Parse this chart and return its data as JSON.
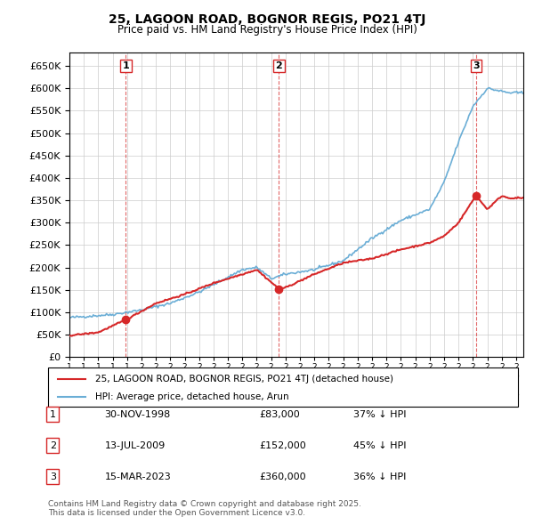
{
  "title": "25, LAGOON ROAD, BOGNOR REGIS, PO21 4TJ",
  "subtitle": "Price paid vs. HM Land Registry's House Price Index (HPI)",
  "legend_line1": "25, LAGOON ROAD, BOGNOR REGIS, PO21 4TJ (detached house)",
  "legend_line2": "HPI: Average price, detached house, Arun",
  "footnote": "Contains HM Land Registry data © Crown copyright and database right 2025.\nThis data is licensed under the Open Government Licence v3.0.",
  "sales": [
    {
      "num": 1,
      "date": "30-NOV-1998",
      "price": 83000,
      "pct": "37% ↓ HPI",
      "year_x": 1998.917
    },
    {
      "num": 2,
      "date": "13-JUL-2009",
      "price": 152000,
      "pct": "45% ↓ HPI",
      "year_x": 2009.542
    },
    {
      "num": 3,
      "date": "15-MAR-2023",
      "price": 360000,
      "pct": "36% ↓ HPI",
      "year_x": 2023.208
    }
  ],
  "hpi_color": "#6baed6",
  "price_color": "#d62728",
  "sale_marker_color": "#d62728",
  "dashed_line_color": "#d62728",
  "ylim": [
    0,
    680000
  ],
  "xlim_start": 1995.0,
  "xlim_end": 2026.5,
  "background_color": "#ffffff",
  "grid_color": "#cccccc"
}
